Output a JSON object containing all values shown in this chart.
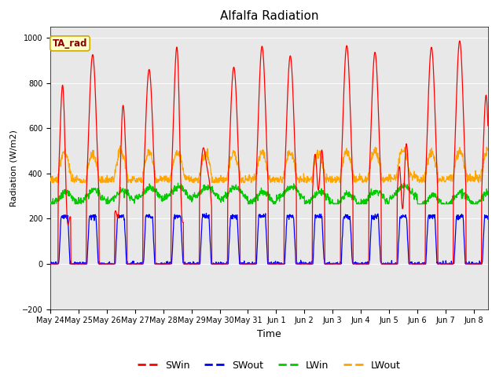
{
  "title": "Alfalfa Radiation",
  "xlabel": "Time",
  "ylabel": "Radiation (W/m2)",
  "ylim": [
    -200,
    1050
  ],
  "annotation": "TA_rad",
  "legend": [
    "SWin",
    "SWout",
    "LWin",
    "LWout"
  ],
  "colors": {
    "SWin": "#ff0000",
    "SWout": "#0000ff",
    "LWin": "#00cc00",
    "LWout": "#ffa500"
  },
  "bg_color": "#e8e8e8",
  "fig_bg": "#ffffff",
  "title_fontsize": 11,
  "tick_labels": [
    "May 24",
    "May 25",
    "May 26",
    "May 27",
    "May 28",
    "May 29",
    "May 30",
    "May 31",
    "Jun 1",
    "Jun 2",
    "Jun 3",
    "Jun 4",
    "Jun 5",
    "Jun 6",
    "Jun 7",
    "Jun 8"
  ]
}
